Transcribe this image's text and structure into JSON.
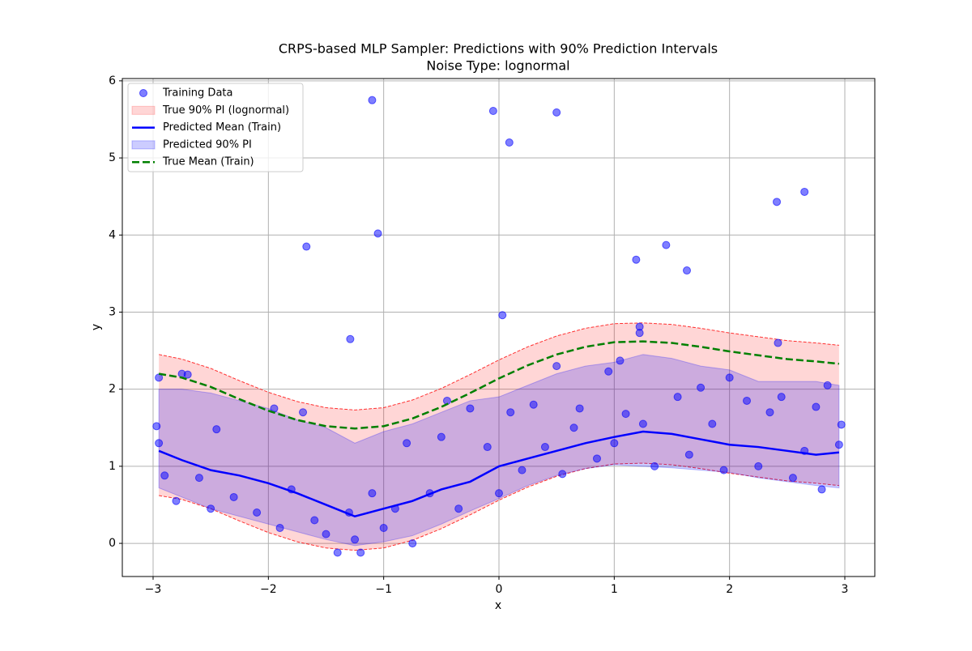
{
  "chart_data": {
    "type": "line",
    "title": "CRPS-based MLP Sampler: Predictions with 90% Prediction Intervals",
    "subtitle": "Noise Type: lognormal",
    "x_label": "x",
    "y_label": "y",
    "xlim": [
      -3.267,
      3.26
    ],
    "ylim": [
      -0.43,
      6.03
    ],
    "xticks": [
      {
        "value": -3,
        "label": "−3"
      },
      {
        "value": -2,
        "label": "−2"
      },
      {
        "value": -1,
        "label": "−1"
      },
      0,
      1,
      2,
      3
    ],
    "yticks": [
      0,
      1,
      2,
      3,
      4,
      5,
      6
    ],
    "grid": true,
    "legend": "upper left",
    "x": [
      -2.95,
      -2.75,
      -2.5,
      -2.25,
      -2,
      -1.75,
      -1.5,
      -1.25,
      -1,
      -0.75,
      -0.5,
      -0.25,
      0,
      0.25,
      0.5,
      0.75,
      1,
      1.25,
      1.5,
      1.75,
      2,
      2.25,
      2.5,
      2.75,
      2.95
    ],
    "series": [
      {
        "name": "Training Data",
        "type": "scatter",
        "color": "#0000ff",
        "x": [
          -1.1,
          -0.05,
          0.5,
          0.09,
          2.65,
          2.41,
          -1.05,
          1.45,
          -1.67,
          1.19,
          1.63,
          0.03,
          -1.29,
          1.22,
          2.42,
          1.22,
          0.5,
          1.05,
          0.95,
          -2.95,
          -2.75,
          -2.7,
          -2.97,
          -2.95,
          -2.9,
          -2.8,
          -2.6,
          -2.5,
          -2.45,
          -2.3,
          -2.1,
          -1.95,
          -1.9,
          -1.8,
          -1.7,
          -1.6,
          -1.5,
          -1.4,
          -1.3,
          -1.25,
          -1.2,
          -1.1,
          -1.0,
          -0.9,
          -0.8,
          -0.75,
          -0.6,
          -0.5,
          -0.45,
          -0.35,
          -0.25,
          -0.1,
          0.0,
          0.1,
          0.2,
          0.3,
          0.4,
          0.55,
          0.65,
          0.7,
          0.85,
          1.0,
          1.1,
          1.25,
          1.35,
          1.55,
          1.65,
          1.75,
          1.85,
          1.95,
          2.0,
          2.15,
          2.25,
          2.35,
          2.45,
          2.55,
          2.65,
          2.75,
          2.8,
          2.85,
          2.95,
          2.97
        ],
        "values": [
          5.75,
          5.61,
          5.59,
          5.2,
          4.56,
          4.43,
          4.02,
          3.87,
          3.85,
          3.68,
          3.54,
          2.96,
          2.65,
          2.81,
          2.6,
          2.73,
          2.3,
          2.37,
          2.23,
          2.15,
          2.2,
          2.19,
          1.52,
          1.3,
          0.88,
          0.55,
          0.85,
          0.45,
          1.48,
          0.6,
          0.4,
          1.75,
          0.2,
          0.7,
          1.7,
          0.3,
          0.12,
          -0.12,
          0.4,
          0.05,
          -0.12,
          0.65,
          0.2,
          0.45,
          1.3,
          0.0,
          0.65,
          1.38,
          1.85,
          0.45,
          1.75,
          1.25,
          0.65,
          1.7,
          0.95,
          1.8,
          1.25,
          0.9,
          1.5,
          1.75,
          1.1,
          1.3,
          1.68,
          1.55,
          1.0,
          1.9,
          1.15,
          2.02,
          1.55,
          0.95,
          2.15,
          1.85,
          1.0,
          1.7,
          1.9,
          0.85,
          1.2,
          1.77,
          0.7,
          2.05,
          1.28,
          1.54
        ]
      },
      {
        "name": "True 90% PI (lognormal)",
        "type": "band",
        "color": "#ff0000",
        "lower": [
          0.62,
          0.57,
          0.45,
          0.29,
          0.14,
          0.02,
          -0.06,
          -0.09,
          -0.06,
          0.04,
          0.19,
          0.37,
          0.56,
          0.73,
          0.87,
          0.97,
          1.03,
          1.04,
          1.02,
          0.97,
          0.91,
          0.86,
          0.81,
          0.78,
          0.75
        ],
        "upper": [
          2.45,
          2.39,
          2.27,
          2.11,
          1.96,
          1.84,
          1.76,
          1.73,
          1.76,
          1.86,
          2.01,
          2.19,
          2.38,
          2.55,
          2.69,
          2.79,
          2.85,
          2.86,
          2.84,
          2.79,
          2.73,
          2.68,
          2.63,
          2.6,
          2.57
        ]
      },
      {
        "name": "Predicted Mean (Train)",
        "type": "line",
        "color": "#0000ff",
        "values": [
          1.2,
          1.08,
          0.95,
          0.88,
          0.78,
          0.65,
          0.5,
          0.35,
          0.45,
          0.55,
          0.7,
          0.8,
          1.0,
          1.1,
          1.2,
          1.3,
          1.38,
          1.45,
          1.42,
          1.35,
          1.28,
          1.25,
          1.2,
          1.15,
          1.18
        ]
      },
      {
        "name": "Predicted 90% PI",
        "type": "band",
        "color": "#0000ff",
        "lower": [
          0.72,
          0.6,
          0.45,
          0.35,
          0.25,
          0.15,
          0.05,
          -0.03,
          0.02,
          0.1,
          0.25,
          0.42,
          0.58,
          0.75,
          0.88,
          0.97,
          1.02,
          1.0,
          0.98,
          0.95,
          0.92,
          0.85,
          0.8,
          0.75,
          0.72
        ],
        "upper": [
          2.0,
          2.0,
          1.95,
          1.85,
          1.75,
          1.6,
          1.5,
          1.3,
          1.45,
          1.55,
          1.7,
          1.85,
          1.9,
          2.05,
          2.2,
          2.3,
          2.35,
          2.45,
          2.4,
          2.3,
          2.25,
          2.1,
          2.1,
          2.1,
          2.05
        ]
      },
      {
        "name": "True Mean (Train)",
        "type": "dashed-line",
        "color": "#008000",
        "values": [
          2.2,
          2.15,
          2.03,
          1.87,
          1.72,
          1.6,
          1.52,
          1.49,
          1.52,
          1.62,
          1.77,
          1.95,
          2.14,
          2.31,
          2.45,
          2.55,
          2.61,
          2.62,
          2.6,
          2.55,
          2.49,
          2.44,
          2.39,
          2.36,
          2.33
        ]
      }
    ]
  }
}
